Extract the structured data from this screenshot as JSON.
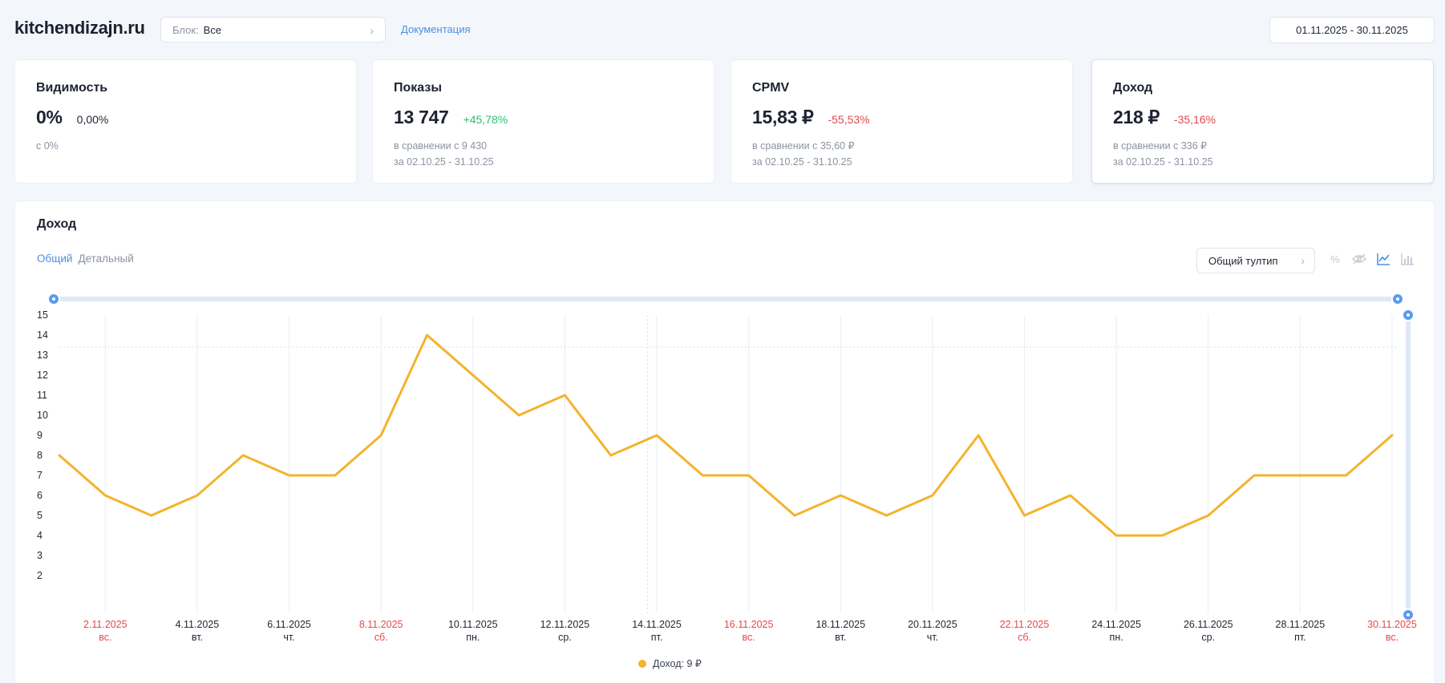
{
  "header": {
    "site": "kitchendizajn.ru",
    "block_label": "Блок:",
    "block_value": "Все",
    "docs_link": "Документация",
    "date_range": "01.11.2025 - 30.11.2025"
  },
  "cards": [
    {
      "title": "Видимость",
      "value": "0%",
      "delta": "0,00%",
      "line1": "с 0%",
      "line2": ""
    },
    {
      "title": "Показы",
      "value": "13 747",
      "delta": "+45,78%",
      "line1": "в сравнении с 9 430",
      "line2": "за 02.10.25 - 31.10.25"
    },
    {
      "title": "CPMV",
      "value": "15,83 ₽",
      "delta": "-55,53%",
      "line1": "в сравнении с 35,60 ₽",
      "line2": "за 02.10.25 - 31.10.25"
    },
    {
      "title": "Доход",
      "value": "218 ₽",
      "delta": "-35,16%",
      "line1": "в сравнении с 336 ₽",
      "line2": "за 02.10.25 - 31.10.25"
    }
  ],
  "panel": {
    "title": "Доход",
    "tabs": [
      "Общий",
      "Детальный"
    ],
    "tooltip_select": "Общий тултип",
    "icons": [
      "percent-icon",
      "eye-off-icon",
      "line-chart-icon",
      "bar-chart-icon"
    ]
  },
  "chart_data": {
    "type": "line",
    "y_ticks": [
      2,
      3,
      4,
      5,
      6,
      7,
      8,
      9,
      10,
      11,
      12,
      13,
      14,
      15
    ],
    "x_ticks": [
      {
        "date": "2.11.2025",
        "day": "вс.",
        "weekend": true
      },
      {
        "date": "4.11.2025",
        "day": "вт.",
        "weekend": false
      },
      {
        "date": "6.11.2025",
        "day": "чт.",
        "weekend": false
      },
      {
        "date": "8.11.2025",
        "day": "сб.",
        "weekend": true
      },
      {
        "date": "10.11.2025",
        "day": "пн.",
        "weekend": false
      },
      {
        "date": "12.11.2025",
        "day": "ср.",
        "weekend": false
      },
      {
        "date": "14.11.2025",
        "day": "пт.",
        "weekend": false
      },
      {
        "date": "16.11.2025",
        "day": "вс.",
        "weekend": true
      },
      {
        "date": "18.11.2025",
        "day": "вт.",
        "weekend": false
      },
      {
        "date": "20.11.2025",
        "day": "чт.",
        "weekend": false
      },
      {
        "date": "22.11.2025",
        "day": "сб.",
        "weekend": true
      },
      {
        "date": "24.11.2025",
        "day": "пн.",
        "weekend": false
      },
      {
        "date": "26.11.2025",
        "day": "ср.",
        "weekend": false
      },
      {
        "date": "28.11.2025",
        "day": "пт.",
        "weekend": false
      },
      {
        "date": "30.11.2025",
        "day": "вс.",
        "weekend": true
      }
    ],
    "series": [
      {
        "name": "Доход",
        "color": "#f4b32c",
        "x": [
          "01.11.2025",
          "02.11.2025",
          "03.11.2025",
          "04.11.2025",
          "05.11.2025",
          "06.11.2025",
          "07.11.2025",
          "08.11.2025",
          "09.11.2025",
          "10.11.2025",
          "11.11.2025",
          "12.11.2025",
          "13.11.2025",
          "14.11.2025",
          "15.11.2025",
          "16.11.2025",
          "17.11.2025",
          "18.11.2025",
          "19.11.2025",
          "20.11.2025",
          "21.11.2025",
          "22.11.2025",
          "23.11.2025",
          "24.11.2025",
          "25.11.2025",
          "26.11.2025",
          "27.11.2025",
          "28.11.2025",
          "29.11.2025",
          "30.11.2025"
        ],
        "values": [
          8,
          6,
          5,
          6,
          8,
          7,
          7,
          9,
          14,
          12,
          10,
          11,
          8,
          9,
          7,
          7,
          5,
          6,
          5,
          6,
          9,
          5,
          6,
          4,
          4,
          5,
          7,
          7,
          7,
          9
        ]
      }
    ],
    "legend_text": "Доход: 9 ₽",
    "ylim": [
      1,
      15
    ]
  },
  "colors": {
    "accent": "#4a90e2",
    "positive": "#2fbf71",
    "negative": "#e5484d",
    "series": "#f4b32c",
    "weekend": "#e5484d"
  }
}
